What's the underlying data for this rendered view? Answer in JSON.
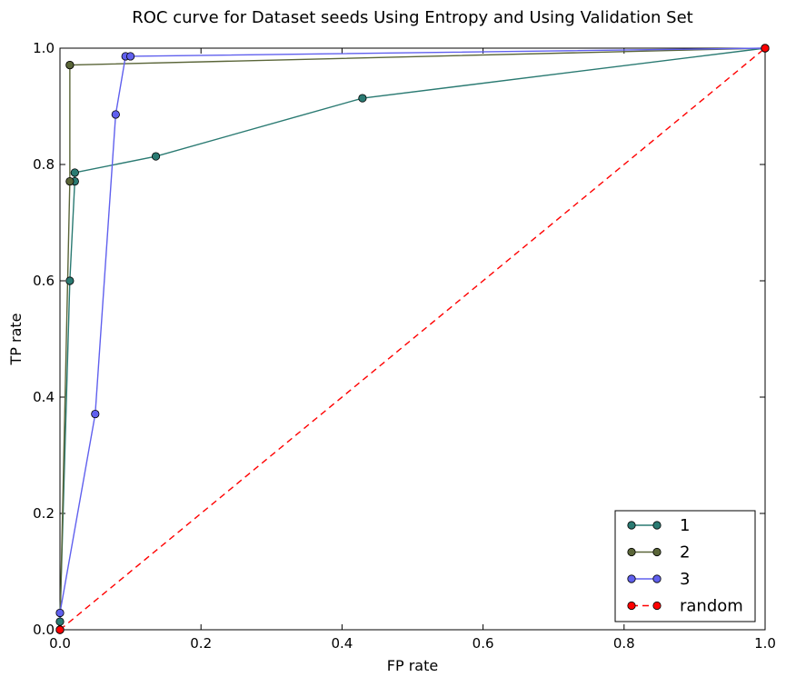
{
  "chart_data": {
    "type": "line",
    "title": "ROC curve for Dataset seeds Using Entropy and Using Validation Set",
    "xlabel": "FP rate",
    "ylabel": "TP rate",
    "xlim": [
      0,
      1
    ],
    "ylim": [
      0,
      1
    ],
    "x_ticks": [
      "0.0",
      "0.2",
      "0.4",
      "0.6",
      "0.8",
      "1.0"
    ],
    "y_ticks": [
      "0.0",
      "0.2",
      "0.4",
      "0.6",
      "0.8",
      "1.0"
    ],
    "grid": false,
    "legend_position": "bottom-right",
    "series": [
      {
        "name": "1",
        "color": "#2a7a72",
        "line_style": "solid",
        "points": [
          [
            0.0,
            0.0
          ],
          [
            0.0,
            0.014
          ],
          [
            0.014,
            0.6
          ],
          [
            0.021,
            0.771
          ],
          [
            0.021,
            0.786
          ],
          [
            0.136,
            0.814
          ],
          [
            0.429,
            0.914
          ],
          [
            1.0,
            1.0
          ]
        ]
      },
      {
        "name": "2",
        "color": "#5a6538",
        "line_style": "solid",
        "points": [
          [
            0.0,
            0.0
          ],
          [
            0.014,
            0.771
          ],
          [
            0.014,
            0.971
          ],
          [
            0.014,
            0.971
          ],
          [
            1.0,
            1.0
          ]
        ]
      },
      {
        "name": "3",
        "color": "#6060ee",
        "line_style": "solid",
        "points": [
          [
            0.0,
            0.0
          ],
          [
            0.0,
            0.029
          ],
          [
            0.05,
            0.371
          ],
          [
            0.079,
            0.886
          ],
          [
            0.093,
            0.986
          ],
          [
            0.1,
            0.986
          ],
          [
            1.0,
            1.0
          ]
        ]
      },
      {
        "name": "random",
        "color": "#ff0000",
        "line_style": "dashed",
        "points": [
          [
            0.0,
            0.0
          ],
          [
            1.0,
            1.0
          ]
        ]
      }
    ]
  }
}
